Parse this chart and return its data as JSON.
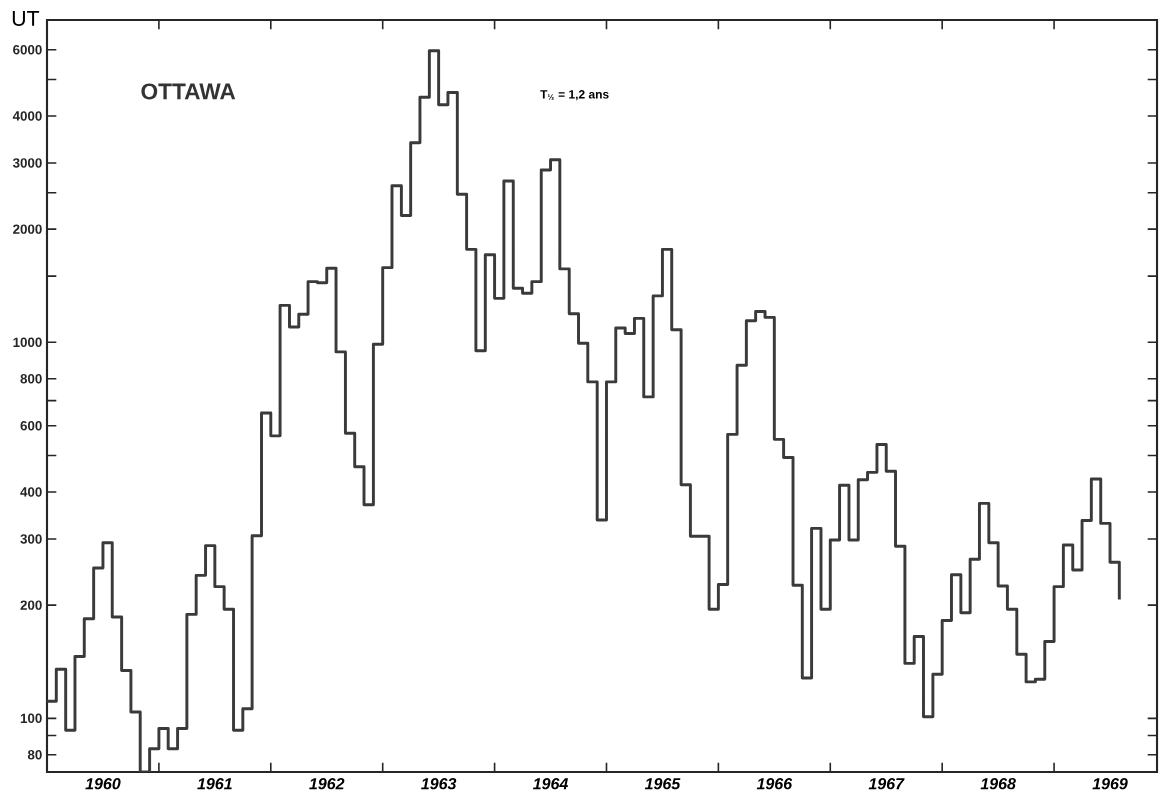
{
  "chart_data": {
    "type": "step",
    "title": "OTTAWA",
    "ylabel": "UT",
    "annotations": [
      "T$_{½}$ = 1,2 ans"
    ],
    "x": [
      1960,
      1960.083,
      1960.167,
      1960.25,
      1960.333,
      1960.417,
      1960.5,
      1960.583,
      1960.667,
      1960.75,
      1960.833,
      1960.917,
      1961,
      1961.083,
      1961.167,
      1961.25,
      1961.333,
      1961.417,
      1961.5,
      1961.583,
      1961.667,
      1961.75,
      1961.833,
      1961.917,
      1962,
      1962.083,
      1962.167,
      1962.25,
      1962.333,
      1962.417,
      1962.5,
      1962.583,
      1962.667,
      1962.75,
      1962.833,
      1962.917,
      1963,
      1963.083,
      1963.167,
      1963.25,
      1963.333,
      1963.417,
      1963.5,
      1963.583,
      1963.667,
      1963.75,
      1963.833,
      1963.917,
      1964,
      1964.083,
      1964.167,
      1964.25,
      1964.333,
      1964.417,
      1964.5,
      1964.583,
      1964.667,
      1964.75,
      1964.833,
      1964.917,
      1965,
      1965.083,
      1965.167,
      1965.25,
      1965.333,
      1965.417,
      1965.5,
      1965.583,
      1965.667,
      1965.75,
      1965.833,
      1965.917,
      1966,
      1966.083,
      1966.167,
      1966.25,
      1966.333,
      1966.417,
      1966.5,
      1966.583,
      1966.667,
      1966.75,
      1966.833,
      1966.917,
      1967,
      1967.083,
      1967.167,
      1967.25,
      1967.333,
      1967.417,
      1967.5,
      1967.583,
      1967.667,
      1967.75,
      1967.833,
      1967.917,
      1968,
      1968.083,
      1968.167,
      1968.25,
      1968.333,
      1968.417,
      1968.5,
      1968.583,
      1968.667,
      1968.75,
      1968.833,
      1968.917,
      1969,
      1969.083,
      1969.167,
      1969.25,
      1969.333,
      1969.417,
      1969.5,
      1969.583
    ],
    "values": [
      111,
      135,
      93,
      146,
      184,
      251,
      293,
      186,
      134,
      104,
      72,
      83,
      94,
      83,
      94,
      189,
      240,
      288,
      224,
      195,
      93,
      106,
      306,
      649,
      564,
      1254,
      1099,
      1187,
      1450,
      1440,
      1574,
      943,
      573,
      467,
      370,
      988,
      1580,
      2608,
      2175,
      3394,
      4485,
      5960,
      4285,
      4620,
      2475,
      1767,
      950,
      1709,
      1309,
      2687,
      1392,
      1350,
      1450,
      2874,
      3058,
      1568,
      1191,
      994,
      785,
      337,
      785,
      1092,
      1056,
      1158,
      716,
      1329,
      1767,
      1080,
      418,
      305,
      305,
      195,
      227,
      569,
      869,
      1141,
      1208,
      1165,
      552,
      494,
      226,
      128,
      320,
      195,
      298,
      417,
      298,
      431,
      451,
      535,
      454,
      287,
      140,
      165,
      101,
      131,
      182,
      241,
      191,
      265,
      373,
      293,
      225,
      195,
      148,
      125,
      127,
      160,
      224,
      289,
      248,
      336,
      433,
      330,
      260,
      207
    ],
    "color": "#3a3a3a",
    "log": "y",
    "marker": "none",
    "line_style": "solid",
    "xlim": [
      1960,
      1969.92
    ],
    "ylim": [
      72,
      7200
    ],
    "xticks": [
      {
        "value": 1961,
        "label": null
      },
      {
        "value": 1962,
        "label": null
      },
      {
        "value": 1963,
        "label": null
      },
      {
        "value": 1964,
        "label": null
      },
      {
        "value": 1965,
        "label": null
      },
      {
        "value": 1966,
        "label": null
      },
      {
        "value": 1967,
        "label": null
      },
      {
        "value": 1968,
        "label": null
      },
      {
        "value": 1969,
        "label": null
      },
      {
        "value": 1960.5,
        "label": "1960"
      },
      {
        "value": 1961.5,
        "label": "1961"
      },
      {
        "value": 1962.5,
        "label": "1962"
      },
      {
        "value": 1963.5,
        "label": "1963"
      },
      {
        "value": 1964.5,
        "label": "1964"
      },
      {
        "value": 1965.5,
        "label": "1965"
      },
      {
        "value": 1966.5,
        "label": "1966"
      },
      {
        "value": 1967.5,
        "label": "1967"
      },
      {
        "value": 1968.5,
        "label": "1968"
      },
      {
        "value": 1969.5,
        "label": "1969"
      }
    ],
    "yticks": [
      80,
      {
        "value": 90,
        "label": null
      },
      100,
      200,
      300,
      400,
      {
        "value": 500,
        "label": null
      },
      600,
      {
        "value": 700,
        "label": null
      },
      800,
      1000,
      {
        "value": 1500,
        "label": null
      },
      2000,
      {
        "value": 2500,
        "label": null
      },
      3000,
      4000,
      {
        "value": 5000,
        "label": null
      },
      6000
    ]
  }
}
